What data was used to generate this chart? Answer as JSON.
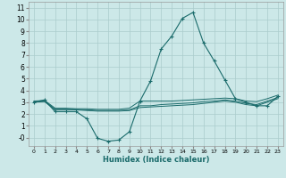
{
  "xlabel": "Humidex (Indice chaleur)",
  "ylabel": "",
  "bg_color": "#cce8e8",
  "grid_color": "#aacccc",
  "line_color": "#1a6b6b",
  "xlim": [
    -0.5,
    23.5
  ],
  "ylim": [
    -0.7,
    11.5
  ],
  "xticks": [
    0,
    1,
    2,
    3,
    4,
    5,
    6,
    7,
    8,
    9,
    10,
    11,
    12,
    13,
    14,
    15,
    16,
    17,
    18,
    19,
    20,
    21,
    22,
    23
  ],
  "yticks": [
    0,
    1,
    2,
    3,
    4,
    5,
    6,
    7,
    8,
    9,
    10,
    11
  ],
  "yticklabels": [
    "-0",
    "1",
    "2",
    "3",
    "4",
    "5",
    "6",
    "7",
    "8",
    "9",
    "10",
    "11"
  ],
  "line1_x": [
    0,
    1,
    2,
    3,
    4,
    5,
    6,
    7,
    8,
    9,
    10,
    11,
    12,
    13,
    14,
    15,
    16,
    17,
    18,
    19,
    20,
    21,
    22,
    23
  ],
  "line1_y": [
    3.0,
    3.2,
    2.2,
    2.2,
    2.2,
    1.6,
    -0.05,
    -0.3,
    -0.2,
    0.5,
    3.1,
    4.8,
    7.5,
    8.6,
    10.1,
    10.6,
    8.0,
    6.5,
    4.9,
    3.3,
    3.0,
    2.7,
    2.7,
    3.5
  ],
  "line2_x": [
    0,
    1,
    2,
    3,
    4,
    5,
    6,
    7,
    8,
    9,
    10,
    11,
    12,
    13,
    14,
    15,
    16,
    17,
    18,
    19,
    20,
    21,
    22,
    23
  ],
  "line2_y": [
    3.1,
    3.15,
    2.5,
    2.5,
    2.45,
    2.45,
    2.4,
    2.4,
    2.4,
    2.5,
    3.1,
    3.1,
    3.1,
    3.1,
    3.15,
    3.2,
    3.25,
    3.3,
    3.35,
    3.3,
    3.1,
    3.05,
    3.3,
    3.6
  ],
  "line3_x": [
    0,
    1,
    2,
    3,
    4,
    5,
    6,
    7,
    8,
    9,
    10,
    11,
    12,
    13,
    14,
    15,
    16,
    17,
    18,
    19,
    20,
    21,
    22,
    23
  ],
  "line3_y": [
    3.05,
    3.1,
    2.4,
    2.4,
    2.4,
    2.35,
    2.3,
    2.3,
    2.3,
    2.35,
    2.7,
    2.7,
    2.8,
    2.85,
    2.9,
    2.95,
    3.05,
    3.1,
    3.2,
    3.1,
    2.9,
    2.8,
    3.1,
    3.4
  ],
  "line4_x": [
    0,
    1,
    2,
    3,
    4,
    5,
    6,
    7,
    8,
    9,
    10,
    11,
    12,
    13,
    14,
    15,
    16,
    17,
    18,
    19,
    20,
    21,
    22,
    23
  ],
  "line4_y": [
    3.0,
    3.05,
    2.35,
    2.35,
    2.35,
    2.3,
    2.25,
    2.25,
    2.25,
    2.3,
    2.55,
    2.6,
    2.65,
    2.7,
    2.75,
    2.8,
    2.9,
    3.0,
    3.1,
    3.0,
    2.8,
    2.7,
    3.0,
    3.3
  ]
}
